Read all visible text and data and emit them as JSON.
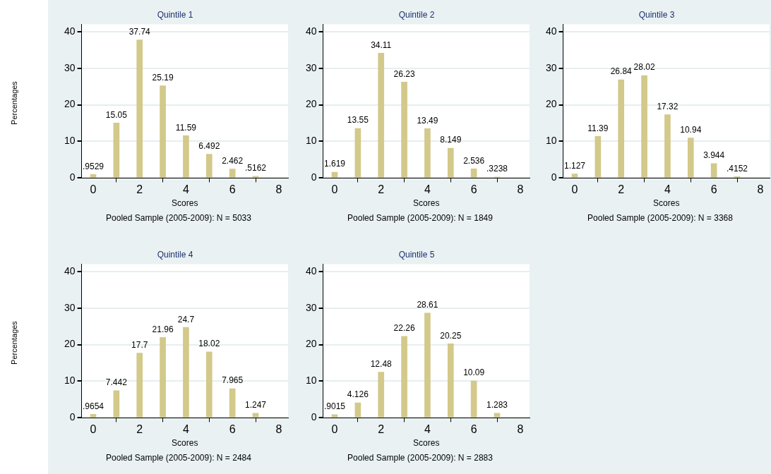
{
  "chart_data": [
    {
      "type": "bar",
      "title": "Quintile 1",
      "xlabel": "Scores",
      "ylabel": "Percentages",
      "annotations": [
        "Pooled Sample (2005-2009):  N = 5033"
      ],
      "x": [
        0,
        1,
        2,
        3,
        4,
        5,
        6,
        7
      ],
      "values": [
        0.9529,
        15.05,
        37.74,
        25.19,
        11.59,
        6.492,
        2.462,
        0.5162
      ],
      "value_labels": [
        ".9529",
        "15.05",
        "37.74",
        "25.19",
        "11.59",
        "6.492",
        "2.462",
        ".5162"
      ],
      "color": "#d2c98a",
      "xlim": [
        -0.5,
        8.4
      ],
      "xticks": [
        0,
        2,
        4,
        6,
        8
      ],
      "ylim": [
        0,
        42
      ],
      "yticks": [
        0,
        10,
        20,
        30,
        40
      ],
      "grid": "y"
    },
    {
      "type": "bar",
      "title": "Quintile 2",
      "xlabel": "Scores",
      "annotations": [
        "Pooled Sample (2005-2009):  N = 1849"
      ],
      "x": [
        0,
        1,
        2,
        3,
        4,
        5,
        6,
        7
      ],
      "values": [
        1.619,
        13.55,
        34.11,
        26.23,
        13.49,
        8.149,
        2.536,
        0.3238
      ],
      "value_labels": [
        "1.619",
        "13.55",
        "34.11",
        "26.23",
        "13.49",
        "8.149",
        "2.536",
        ".3238"
      ],
      "color": "#d2c98a",
      "xlim": [
        -0.5,
        8.4
      ],
      "xticks": [
        0,
        2,
        4,
        6,
        8
      ],
      "ylim": [
        0,
        42
      ],
      "yticks": [
        0,
        10,
        20,
        30,
        40
      ],
      "grid": "y"
    },
    {
      "type": "bar",
      "title": "Quintile 3",
      "xlabel": "Scores",
      "annotations": [
        "Pooled Sample (2005-2009):  N = 3368"
      ],
      "x": [
        0,
        1,
        2,
        3,
        4,
        5,
        6,
        7
      ],
      "values": [
        1.127,
        11.39,
        26.84,
        28.02,
        17.32,
        10.94,
        3.944,
        0.4152
      ],
      "value_labels": [
        "1.127",
        "11.39",
        "26.84",
        "28.02",
        "17.32",
        "10.94",
        "3.944",
        ".4152"
      ],
      "color": "#d2c98a",
      "xlim": [
        -0.5,
        8.4
      ],
      "xticks": [
        0,
        2,
        4,
        6,
        8
      ],
      "ylim": [
        0,
        42
      ],
      "yticks": [
        0,
        10,
        20,
        30,
        40
      ],
      "grid": "y"
    },
    {
      "type": "bar",
      "title": "Quintile 4",
      "xlabel": "Scores",
      "ylabel": "Percentages",
      "annotations": [
        "Pooled Sample (2005-2009):  N = 2484"
      ],
      "x": [
        0,
        1,
        2,
        3,
        4,
        5,
        6,
        7
      ],
      "values": [
        0.9654,
        7.442,
        17.7,
        21.96,
        24.7,
        18.02,
        7.965,
        1.247
      ],
      "value_labels": [
        ".9654",
        "7.442",
        "17.7",
        "21.96",
        "24.7",
        "18.02",
        "7.965",
        "1.247"
      ],
      "color": "#d2c98a",
      "xlim": [
        -0.5,
        8.4
      ],
      "xticks": [
        0,
        2,
        4,
        6,
        8
      ],
      "ylim": [
        0,
        42
      ],
      "yticks": [
        0,
        10,
        20,
        30,
        40
      ],
      "grid": "y"
    },
    {
      "type": "bar",
      "title": "Quintile 5",
      "xlabel": "Scores",
      "annotations": [
        "Pooled Sample (2005-2009):  N = 2883"
      ],
      "x": [
        0,
        1,
        2,
        3,
        4,
        5,
        6,
        7
      ],
      "values": [
        0.9015,
        4.126,
        12.48,
        22.26,
        28.61,
        20.25,
        10.09,
        1.283
      ],
      "value_labels": [
        ".9015",
        "4.126",
        "12.48",
        "22.26",
        "28.61",
        "20.25",
        "10.09",
        "1.283"
      ],
      "color": "#d2c98a",
      "xlim": [
        -0.5,
        8.4
      ],
      "xticks": [
        0,
        2,
        4,
        6,
        8
      ],
      "ylim": [
        0,
        42
      ],
      "yticks": [
        0,
        10,
        20,
        30,
        40
      ],
      "grid": "y"
    }
  ]
}
